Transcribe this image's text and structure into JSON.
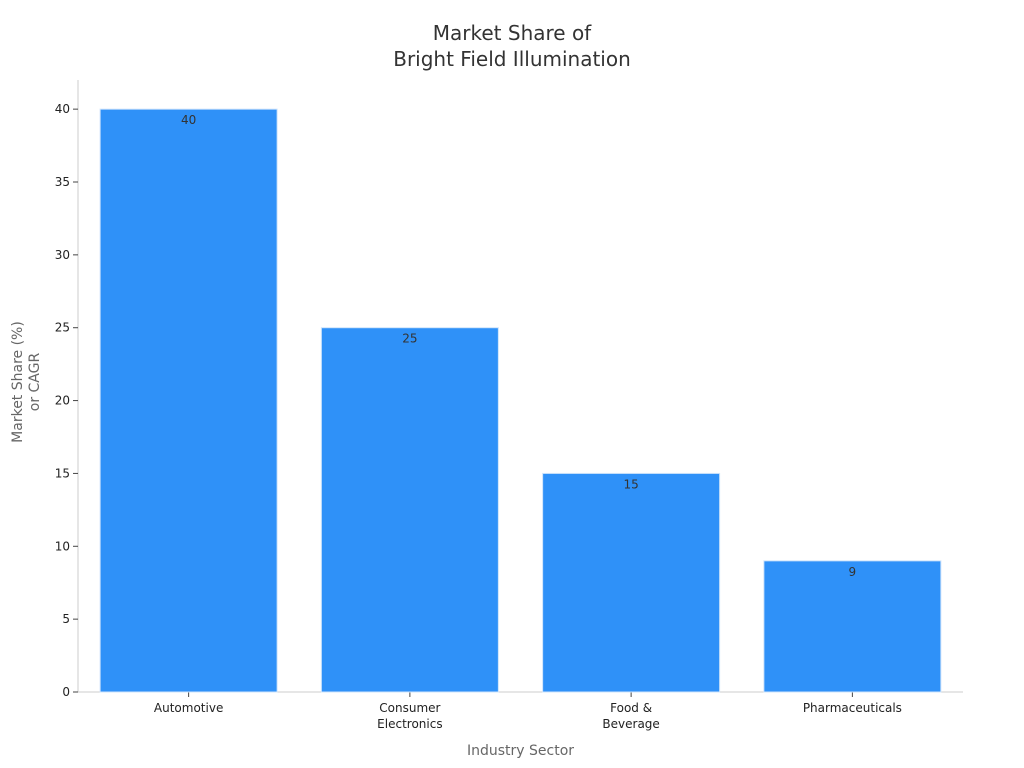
{
  "chart_data": {
    "type": "bar",
    "title": [
      "Market Share of",
      "Bright Field Illumination"
    ],
    "xlabel": "Industry Sector",
    "ylabel": [
      "Market Share (%)",
      "or CAGR"
    ],
    "categories": [
      [
        "Automotive"
      ],
      [
        "Consumer",
        "Electronics"
      ],
      [
        "Food &",
        "Beverage"
      ],
      [
        "Pharmaceuticals"
      ]
    ],
    "values": [
      40,
      25,
      15,
      9
    ],
    "ylim": [
      0,
      42
    ],
    "yticks": [
      0,
      5,
      10,
      15,
      20,
      25,
      30,
      35,
      40
    ],
    "grid": false,
    "bar_color": "#2f91f8",
    "show_data_labels": true
  }
}
